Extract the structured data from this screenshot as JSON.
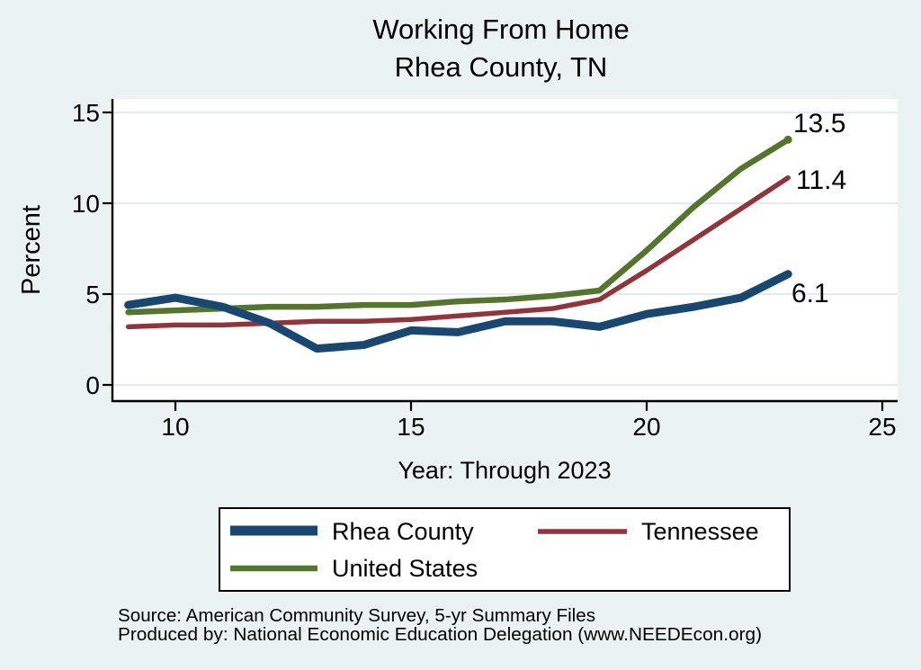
{
  "title": {
    "line1": "Working From Home",
    "line2": "Rhea County, TN"
  },
  "colors": {
    "background": "#eaf2f3",
    "plot_background": "#ffffff",
    "gridline": "#e0ecef",
    "title_text": "#1f3a64",
    "axis_text": "#000000",
    "rhea_county_line": "#1a476f",
    "tennessee_line": "#90353b",
    "united_states_line": "#55752f"
  },
  "chart_data": {
    "type": "line",
    "title": "Working From Home",
    "subtitle": "Rhea County, TN",
    "xlabel": "Year: Through 2023",
    "ylabel": "Percent",
    "x": [
      9,
      10,
      11,
      12,
      13,
      14,
      15,
      16,
      17,
      18,
      19,
      20,
      21,
      22,
      23
    ],
    "x_tick_labels": [
      "10",
      "15",
      "20",
      "25"
    ],
    "x_tick_values": [
      10,
      15,
      20,
      25
    ],
    "y_tick_labels": [
      "0",
      "5",
      "10",
      "15"
    ],
    "y_tick_values": [
      0,
      5,
      10,
      15
    ],
    "xlim": [
      8.7,
      25.4
    ],
    "ylim": [
      0,
      15
    ],
    "grid": "horizontal",
    "legend_position": "bottom-box",
    "series": [
      {
        "name": "Rhea County",
        "color": "#1a476f",
        "width": 9,
        "swatch_width": 11,
        "end_label": "6.1",
        "values": [
          4.4,
          4.8,
          4.3,
          3.4,
          2.0,
          2.2,
          3.0,
          2.9,
          3.5,
          3.5,
          3.2,
          3.9,
          4.3,
          4.8,
          6.1
        ]
      },
      {
        "name": "Tennessee",
        "color": "#90353b",
        "width": 5.5,
        "swatch_width": 5.5,
        "end_label": "11.4",
        "values": [
          3.2,
          3.3,
          3.3,
          3.4,
          3.5,
          3.5,
          3.6,
          3.8,
          4.0,
          4.2,
          4.7,
          6.3,
          8.0,
          9.7,
          11.4
        ]
      },
      {
        "name": "United States",
        "color": "#55752f",
        "width": 6.5,
        "swatch_width": 6.5,
        "end_label": "13.5",
        "end_marker": true,
        "values": [
          4.0,
          4.1,
          4.2,
          4.3,
          4.3,
          4.4,
          4.4,
          4.6,
          4.7,
          4.9,
          5.2,
          7.4,
          9.8,
          11.9,
          13.5
        ]
      }
    ]
  },
  "notes": {
    "line1": "Source: American Community Survey, 5-yr Summary Files",
    "line2": "Produced by: National Economic Education Delegation (www.NEEDEcon.org)"
  }
}
